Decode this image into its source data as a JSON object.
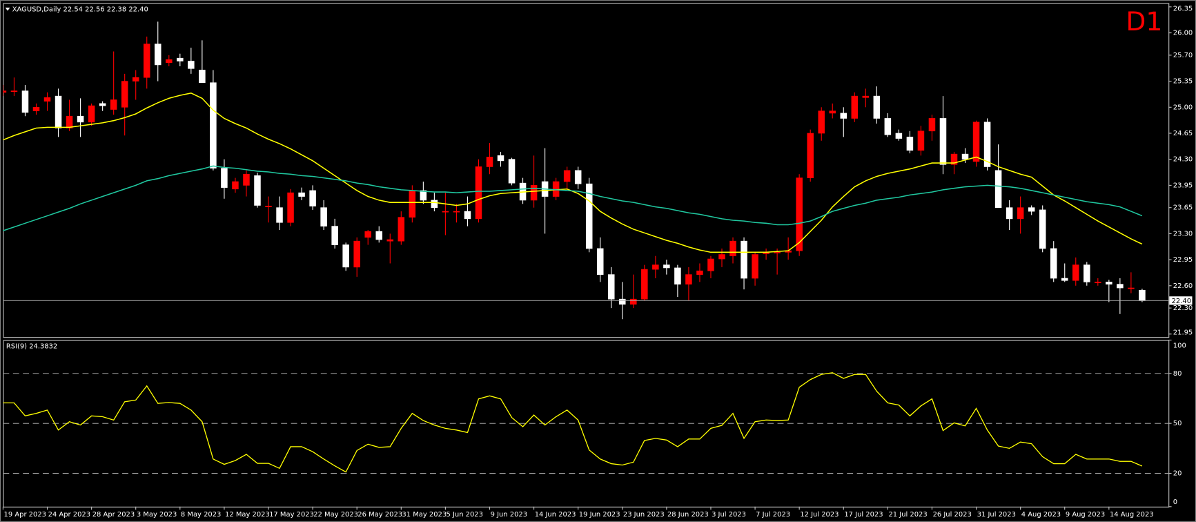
{
  "chart_data": [
    {
      "type": "candlestick",
      "title": "XAGUSD,Daily  22.54 22.56 22.38 22.40",
      "badge": "D1",
      "categories": [
        "19 Apr 2023",
        null,
        null,
        null,
        "24 Apr 2023",
        null,
        null,
        null,
        "28 Apr 2023",
        null,
        null,
        null,
        "3 May 2023",
        null,
        null,
        null,
        "8 May 2023",
        null,
        null,
        null,
        "12 May 2023",
        null,
        null,
        null,
        "17 May 2023",
        null,
        null,
        null,
        "22 May 2023",
        null,
        null,
        null,
        "26 May 2023",
        null,
        null,
        null,
        "31 May 2023",
        null,
        null,
        null,
        "5 Jun 2023",
        null,
        null,
        null,
        "9 Jun 2023",
        null,
        null,
        null,
        "14 Jun 2023",
        null,
        null,
        null,
        "19 Jun 2023",
        null,
        null,
        null,
        "23 Jun 2023",
        null,
        null,
        null,
        "28 Jun 2023",
        null,
        null,
        null,
        "3 Jul 2023",
        null,
        null,
        null,
        "7 Jul 2023",
        null,
        null,
        null,
        "12 Jul 2023",
        null,
        null,
        null,
        "17 Jul 2023",
        null,
        null,
        null,
        "21 Jul 2023",
        null,
        null,
        null,
        "26 Jul 2023",
        null,
        null,
        null,
        "31 Jul 2023",
        null,
        null,
        null,
        "4 Aug 2023",
        null,
        null,
        null,
        "9 Aug 2023",
        null,
        null,
        null,
        "14 Aug 2023",
        null,
        null,
        null
      ],
      "open": [
        25.2,
        25.22,
        25.22,
        24.95,
        25.08,
        25.15,
        24.72,
        24.88,
        24.8,
        25.05,
        24.97,
        25.0,
        25.35,
        25.4,
        25.85,
        25.6,
        25.66,
        25.62,
        25.5,
        25.33,
        24.18,
        23.9,
        23.95,
        24.08,
        23.67,
        23.65,
        23.45,
        23.85,
        23.88,
        23.65,
        23.4,
        23.15,
        22.85,
        23.25,
        23.33,
        23.2,
        23.2,
        23.52,
        23.88,
        23.75,
        23.6,
        23.6,
        23.6,
        23.5,
        24.2,
        24.35,
        24.3,
        23.98,
        23.75,
        24.0,
        23.8,
        24.0,
        24.15,
        23.97,
        23.1,
        22.75,
        22.42,
        22.35,
        22.42,
        22.82,
        22.88,
        22.84,
        22.62,
        22.75,
        22.8,
        22.96,
        23.0,
        23.2,
        22.7,
        23.03,
        23.05,
        23.05,
        23.07,
        24.05,
        24.65,
        24.92,
        24.92,
        24.85,
        25.13,
        25.15,
        24.85,
        24.65,
        24.6,
        24.42,
        24.68,
        24.85,
        24.23,
        24.37,
        24.27,
        24.8,
        24.15,
        23.65,
        23.5,
        23.65,
        23.62,
        23.1,
        22.7,
        22.67,
        22.88,
        22.65,
        22.65,
        22.62,
        22.57,
        22.54
      ],
      "high": [
        25.3,
        25.4,
        25.3,
        25.05,
        25.2,
        25.25,
        25.1,
        25.12,
        25.05,
        25.08,
        25.75,
        25.45,
        25.5,
        25.95,
        26.15,
        25.7,
        25.72,
        25.8,
        25.9,
        25.5,
        24.3,
        24.05,
        24.15,
        24.12,
        23.8,
        23.8,
        23.9,
        23.92,
        23.95,
        23.75,
        23.5,
        23.18,
        23.25,
        23.35,
        23.4,
        23.3,
        23.6,
        23.95,
        24.0,
        23.85,
        23.85,
        23.7,
        23.8,
        24.3,
        24.52,
        24.4,
        24.32,
        24.05,
        24.35,
        24.45,
        24.05,
        24.2,
        24.2,
        24.05,
        23.25,
        22.85,
        22.65,
        22.75,
        22.88,
        23.0,
        22.95,
        22.88,
        22.85,
        22.9,
        23.0,
        23.1,
        23.25,
        23.25,
        23.05,
        23.1,
        23.1,
        23.25,
        24.1,
        24.7,
        25.0,
        25.05,
        25.0,
        25.2,
        25.25,
        25.28,
        24.92,
        24.7,
        24.68,
        24.75,
        24.9,
        25.15,
        24.4,
        24.45,
        24.82,
        24.85,
        24.5,
        23.75,
        23.8,
        23.68,
        23.68,
        23.2,
        22.9,
        22.98,
        22.92,
        22.7,
        22.68,
        22.7,
        22.78,
        22.56
      ],
      "low": [
        25.15,
        25.15,
        24.88,
        24.9,
        24.95,
        24.6,
        24.68,
        24.6,
        24.75,
        24.95,
        24.9,
        24.62,
        25.1,
        25.25,
        25.35,
        25.55,
        25.55,
        25.45,
        25.35,
        24.15,
        23.77,
        23.85,
        23.8,
        23.65,
        23.45,
        23.35,
        23.4,
        23.75,
        23.62,
        23.35,
        23.1,
        22.8,
        22.72,
        23.15,
        23.18,
        22.9,
        23.15,
        23.45,
        23.7,
        23.6,
        23.28,
        23.45,
        23.4,
        23.45,
        24.1,
        24.2,
        23.95,
        23.7,
        23.65,
        23.3,
        23.75,
        23.9,
        23.9,
        23.05,
        22.65,
        22.3,
        22.15,
        22.3,
        22.4,
        22.7,
        22.75,
        22.45,
        22.4,
        22.65,
        22.7,
        22.85,
        22.9,
        22.55,
        22.6,
        22.95,
        22.75,
        22.95,
        23.0,
        24.0,
        24.55,
        24.85,
        24.6,
        24.8,
        25.0,
        24.78,
        24.6,
        24.55,
        24.38,
        24.35,
        24.55,
        24.1,
        24.1,
        24.25,
        24.2,
        24.15,
        23.65,
        23.35,
        23.3,
        23.55,
        23.05,
        22.65,
        22.65,
        22.6,
        22.6,
        22.6,
        22.38,
        22.22,
        22.5,
        22.38
      ],
      "close": [
        25.22,
        25.22,
        24.93,
        25.0,
        25.13,
        24.72,
        24.88,
        24.8,
        25.02,
        25.02,
        25.1,
        25.35,
        25.4,
        25.85,
        25.57,
        25.64,
        25.62,
        25.52,
        25.33,
        24.18,
        23.92,
        24.0,
        24.1,
        23.68,
        23.67,
        23.45,
        23.85,
        23.8,
        23.67,
        23.4,
        23.15,
        22.85,
        23.2,
        23.33,
        23.22,
        23.22,
        23.52,
        23.88,
        23.75,
        23.65,
        23.6,
        23.6,
        23.5,
        24.2,
        24.33,
        24.28,
        23.98,
        23.75,
        23.95,
        23.8,
        24.0,
        24.15,
        23.97,
        23.1,
        22.75,
        22.42,
        22.35,
        22.42,
        22.82,
        22.88,
        22.84,
        22.62,
        22.75,
        22.8,
        22.96,
        23.02,
        23.2,
        22.7,
        23.02,
        23.05,
        23.05,
        23.07,
        24.05,
        24.65,
        24.95,
        24.95,
        24.85,
        25.15,
        25.15,
        24.85,
        24.63,
        24.58,
        24.42,
        24.68,
        24.85,
        24.23,
        24.37,
        24.3,
        24.8,
        24.2,
        23.65,
        23.5,
        23.65,
        23.6,
        23.1,
        22.7,
        22.67,
        22.88,
        22.65,
        22.65,
        22.62,
        22.57,
        22.57,
        22.4
      ],
      "up_color": "#ff0000",
      "down_color": "#ffffff",
      "series": [
        {
          "color": "#ffff00",
          "values": [
            24.56,
            24.62,
            24.67,
            24.72,
            24.73,
            24.73,
            24.73,
            24.75,
            24.77,
            24.79,
            24.82,
            24.86,
            24.91,
            24.99,
            25.06,
            25.12,
            25.16,
            25.19,
            25.12,
            24.96,
            24.85,
            24.78,
            24.72,
            24.64,
            24.57,
            24.51,
            24.44,
            24.36,
            24.28,
            24.18,
            24.08,
            23.98,
            23.88,
            23.8,
            23.75,
            23.72,
            23.72,
            23.72,
            23.72,
            23.72,
            23.7,
            23.68,
            23.7,
            23.76,
            23.81,
            23.84,
            23.85,
            23.86,
            23.87,
            23.88,
            23.89,
            23.9,
            23.84,
            23.74,
            23.6,
            23.51,
            23.43,
            23.36,
            23.31,
            23.26,
            23.21,
            23.17,
            23.12,
            23.08,
            23.05,
            23.05,
            23.05,
            23.05,
            23.05,
            23.05,
            23.06,
            23.07,
            23.18,
            23.33,
            23.48,
            23.66,
            23.8,
            23.93,
            24.01,
            24.07,
            24.11,
            24.14,
            24.17,
            24.21,
            24.25,
            24.25,
            24.25,
            24.29,
            24.33,
            24.27,
            24.2,
            24.15,
            24.1,
            24.06,
            23.94,
            23.82,
            23.74,
            23.65,
            23.56,
            23.47,
            23.39,
            23.31,
            23.23,
            23.16
          ]
        },
        {
          "color": "#20c8a0",
          "values": [
            23.34,
            23.39,
            23.44,
            23.49,
            23.54,
            23.59,
            23.64,
            23.7,
            23.75,
            23.8,
            23.85,
            23.9,
            23.95,
            24.01,
            24.04,
            24.08,
            24.11,
            24.14,
            24.17,
            24.21,
            24.19,
            24.18,
            24.16,
            24.14,
            24.13,
            24.11,
            24.1,
            24.08,
            24.07,
            24.05,
            24.03,
            24.01,
            23.98,
            23.96,
            23.93,
            23.91,
            23.89,
            23.88,
            23.87,
            23.86,
            23.86,
            23.85,
            23.86,
            23.87,
            23.87,
            23.88,
            23.89,
            23.9,
            23.91,
            23.9,
            23.89,
            23.88,
            23.87,
            23.84,
            23.8,
            23.77,
            23.74,
            23.72,
            23.69,
            23.66,
            23.64,
            23.61,
            23.58,
            23.56,
            23.53,
            23.5,
            23.48,
            23.47,
            23.45,
            23.44,
            23.42,
            23.42,
            23.44,
            23.47,
            23.53,
            23.6,
            23.64,
            23.68,
            23.71,
            23.75,
            23.77,
            23.79,
            23.82,
            23.84,
            23.86,
            23.89,
            23.91,
            23.93,
            23.94,
            23.95,
            23.94,
            23.93,
            23.91,
            23.88,
            23.85,
            23.82,
            23.79,
            23.76,
            23.73,
            23.71,
            23.69,
            23.66,
            23.6,
            23.54
          ]
        }
      ],
      "ylim": [
        21.91,
        26.4
      ],
      "yticks": [
        26.35,
        {
          "value": 26,
          "label": "26.00"
        },
        {
          "value": 25.7,
          "label": "25.70"
        },
        25.35,
        {
          "value": 25,
          "label": "25.00"
        },
        24.65,
        {
          "value": 24.3,
          "label": "24.30"
        },
        23.95,
        23.65,
        {
          "value": 23.3,
          "label": "23.30"
        },
        22.95,
        {
          "value": 22.6,
          "label": "22.60"
        },
        {
          "value": 22.3,
          "label": "22.30"
        },
        21.95
      ],
      "last_price": {
        "value": 22.4,
        "label": "22.40"
      }
    },
    {
      "type": "line",
      "title": "RSI(9) 24.3832",
      "series": [
        {
          "color": "#ffff00",
          "values": [
            62.3,
            62.3,
            54.5,
            56,
            58,
            46,
            51,
            49,
            54.5,
            54,
            52,
            63,
            64,
            72.5,
            62,
            62.5,
            62,
            58,
            51,
            28.6,
            25.4,
            27.7,
            31.4,
            26,
            26,
            23,
            36,
            36,
            33,
            28.6,
            24.5,
            20.8,
            33.7,
            37.5,
            35.6,
            36,
            47,
            56,
            51.7,
            49,
            47,
            46,
            44.5,
            64.7,
            66.5,
            64.7,
            53.5,
            48,
            55,
            49,
            54,
            58,
            52,
            34,
            28.6,
            25.8,
            25,
            26.7,
            39.7,
            41,
            40,
            36,
            40.6,
            40.6,
            47,
            48.8,
            56,
            41,
            51,
            52,
            51.7,
            52,
            71.7,
            76.3,
            79.4,
            80.4,
            77,
            79.4,
            79.4,
            69.3,
            62.3,
            61,
            54.5,
            60.5,
            64.7,
            45.7,
            50.3,
            48.5,
            59,
            46,
            36.4,
            35,
            38.8,
            37.8,
            30,
            25.8,
            25.8,
            31.4,
            28.6,
            28.6,
            28.6,
            27.2,
            27.2,
            24.38
          ]
        }
      ],
      "ylim": [
        0,
        100
      ],
      "yticks": [
        100,
        80,
        50,
        20,
        0
      ],
      "levels": [
        80,
        50,
        20
      ]
    }
  ]
}
